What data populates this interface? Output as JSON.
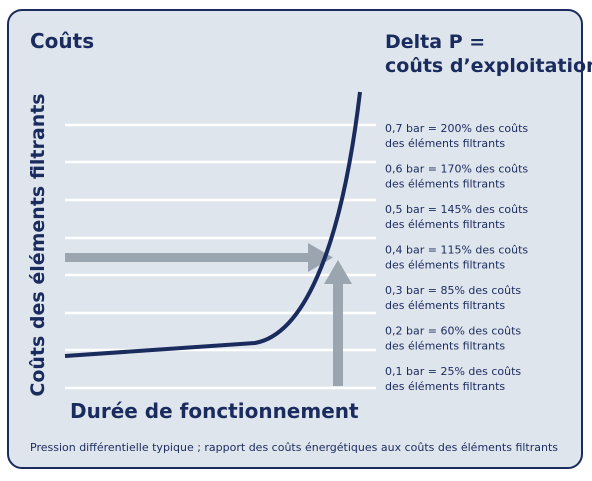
{
  "title": "Coûts",
  "delta_p": {
    "line1": "Delta P =",
    "line2": "coûts d’exploitation"
  },
  "y_axis_label": "Coûts des éléments filtrants",
  "x_axis_label": "Durée de fonctionnement",
  "levels": [
    {
      "line1": "0,7 bar = 200% des coûts",
      "line2": "des éléments filtrants"
    },
    {
      "line1": "0,6 bar = 170% des coûts",
      "line2": "des éléments filtrants"
    },
    {
      "line1": "0,5 bar = 145% des coûts",
      "line2": "des éléments filtrants"
    },
    {
      "line1": "0,4 bar = 115% des coûts",
      "line2": "des éléments filtrants"
    },
    {
      "line1": "0,3 bar = 85% des coûts",
      "line2": "des éléments filtrants"
    },
    {
      "line1": "0,2 bar = 60% des coûts",
      "line2": "des éléments filtrants"
    },
    {
      "line1": "0,1 bar = 25% des coûts",
      "line2": "des éléments filtrants"
    }
  ],
  "caption": "Pression différentielle typique ; rapport des coûts énergétiques aux coûts des éléments filtrants"
}
